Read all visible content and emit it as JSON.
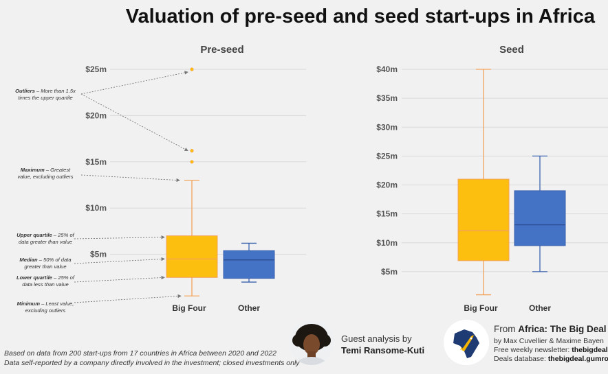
{
  "title": "Valuation of pre-seed and seed start-ups in Africa",
  "colors": {
    "big_four": "#fdbf0f",
    "big_four_stroke": "#f2a25a",
    "big_four_median": "#f4a05e",
    "other": "#4472c4",
    "other_stroke": "#3a62ad",
    "other_median": "#2b4d8f",
    "grid": "#d9d9d9",
    "annotation": "#777777"
  },
  "chart_data": [
    {
      "type": "box",
      "title": "Pre-seed",
      "categories": [
        "Big Four",
        "Other"
      ],
      "y_ticks": [
        {
          "value": 5,
          "label": "$5m"
        },
        {
          "value": 10,
          "label": "$10m"
        },
        {
          "value": 15,
          "label": "$15m"
        },
        {
          "value": 20,
          "label": "$20m"
        },
        {
          "value": 25,
          "label": "$25m"
        }
      ],
      "ylim": [
        0,
        25
      ],
      "grid": true,
      "series": [
        {
          "name": "Big Four",
          "min": 0.5,
          "q1": 2.5,
          "median": 4.5,
          "q3": 7.0,
          "max": 13.0,
          "outliers": [
            25.0,
            16.2,
            15.0
          ]
        },
        {
          "name": "Other",
          "min": 2.0,
          "q1": 2.4,
          "median": 4.4,
          "q3": 5.4,
          "max": 6.2,
          "outliers": []
        }
      ]
    },
    {
      "type": "box",
      "title": "Seed",
      "categories": [
        "Big Four",
        "Other"
      ],
      "y_ticks": [
        {
          "value": 5,
          "label": "$5m"
        },
        {
          "value": 10,
          "label": "$10m"
        },
        {
          "value": 15,
          "label": "$15m"
        },
        {
          "value": 20,
          "label": "$20m"
        },
        {
          "value": 25,
          "label": "$25m"
        },
        {
          "value": 30,
          "label": "$30m"
        },
        {
          "value": 35,
          "label": "$35m"
        },
        {
          "value": 40,
          "label": "$40m"
        }
      ],
      "ylim": [
        0,
        40
      ],
      "grid": true,
      "series": [
        {
          "name": "Big Four",
          "min": 1.0,
          "q1": 6.9,
          "median": 12.1,
          "q3": 21.0,
          "max": 40.0,
          "outliers": []
        },
        {
          "name": "Other",
          "min": 5.0,
          "q1": 9.5,
          "median": 13.1,
          "q3": 19.0,
          "max": 25.0,
          "outliers": []
        }
      ]
    }
  ],
  "annotations": [
    {
      "bold": "Outliers",
      "text": " – More than 1.5x",
      "line2": "times the upper quartile"
    },
    {
      "bold": "Maximum",
      "text": " – Greatest",
      "line2": "value, excluding outliers"
    },
    {
      "bold": "Upper quartile",
      "text": " – 25% of",
      "line2": "data greater than value"
    },
    {
      "bold": "Median",
      "text": " – 50% of data",
      "line2": "greater than value"
    },
    {
      "bold": "Lower quartile",
      "text": " – 25% of",
      "line2": "data less than value"
    },
    {
      "bold": "Minimum",
      "text": " – Least value,",
      "line2": "excluding outliers"
    }
  ],
  "footnote": {
    "line1": "Based on data from 200 start-ups from 17 countries in Africa between 2020 and 2022",
    "line2": "Data self-reported by a company directly involved in the investment; closed investments only"
  },
  "guest": {
    "line1": "Guest analysis by",
    "name": "Temi Ransome-Kuti"
  },
  "brand": {
    "from": "From ",
    "name": "Africa: The Big Deal",
    "authors": "by Max Cuvellier & Maxime Bayen",
    "newsletter_label": "Free weekly newsletter: ",
    "newsletter": "thebigdeal.",
    "database_label": "Deals database: ",
    "database": "thebigdeal.gumroa"
  }
}
